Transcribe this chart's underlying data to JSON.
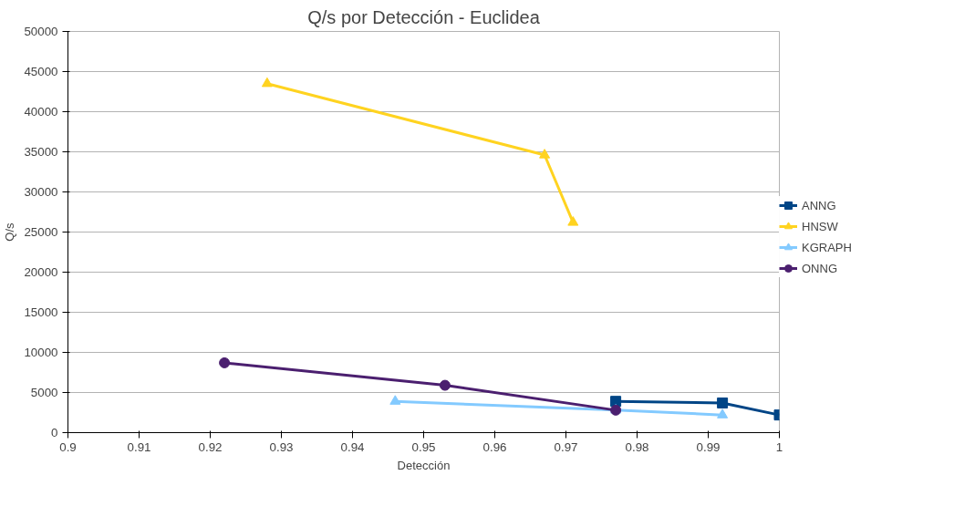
{
  "chart_data": {
    "type": "line",
    "title": "Q/s por Detección - Euclidea",
    "xlabel": "Detección",
    "ylabel": "Q/s",
    "xlim": [
      0.9,
      1
    ],
    "xticks": [
      0.9,
      0.91,
      0.92,
      0.93,
      0.94,
      0.95,
      0.96,
      0.97,
      0.98,
      0.99,
      1
    ],
    "ylim": [
      0,
      50000
    ],
    "yticks": [
      0,
      5000,
      10000,
      15000,
      20000,
      25000,
      30000,
      35000,
      40000,
      45000,
      50000
    ],
    "grid": "y",
    "legend": "right",
    "series": [
      {
        "name": "ANNG",
        "color": "#004586",
        "marker": "square",
        "x": [
          0.977,
          0.992,
          1.0
        ],
        "values": [
          3900,
          3700,
          2200
        ]
      },
      {
        "name": "HNSW",
        "color": "#ffd320",
        "marker": "triangle",
        "x": [
          0.928,
          0.967,
          0.971
        ],
        "values": [
          43500,
          34600,
          26200
        ]
      },
      {
        "name": "KGRAPH",
        "color": "#83caff",
        "marker": "triangle",
        "x": [
          0.946,
          0.977,
          0.992
        ],
        "values": [
          3900,
          2800,
          2200
        ]
      },
      {
        "name": "ONNG",
        "color": "#4b1f6f",
        "marker": "circle",
        "x": [
          0.922,
          0.953,
          0.977
        ],
        "values": [
          8700,
          5900,
          2800
        ]
      }
    ]
  }
}
